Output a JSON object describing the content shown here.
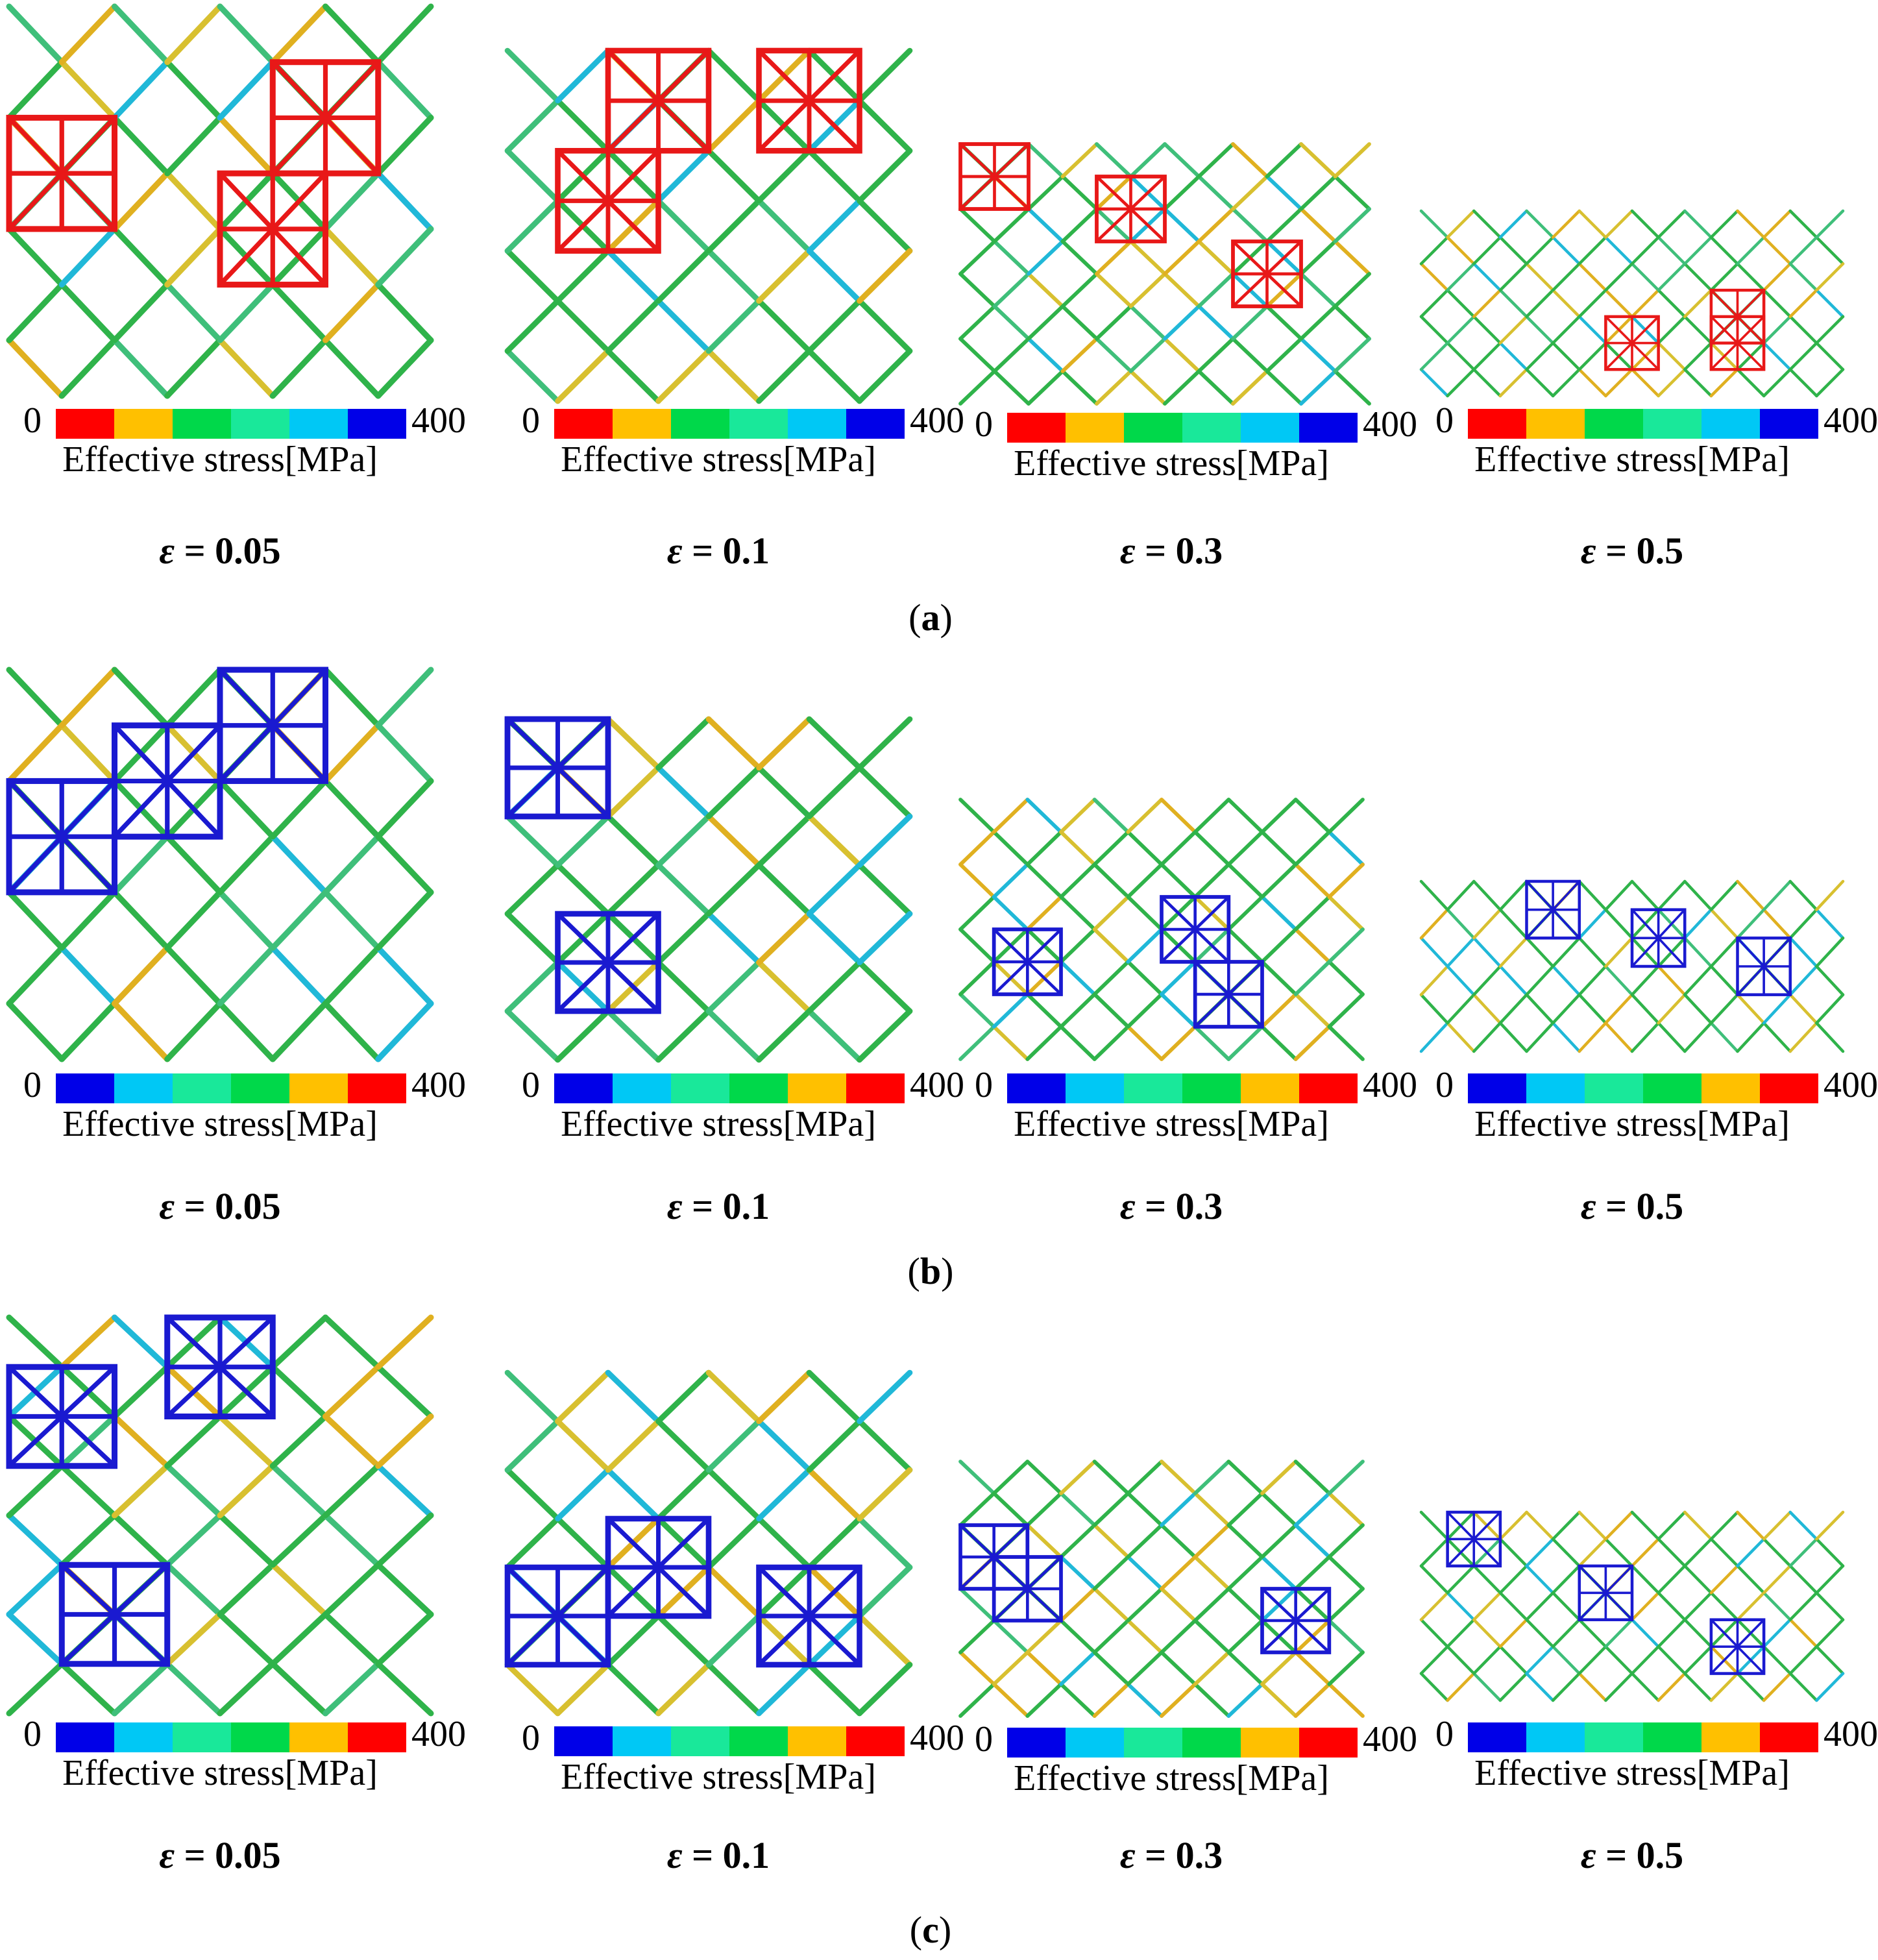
{
  "colormap": {
    "hot_to_cold": [
      "#ff0000",
      "#ffc000",
      "#00d84a",
      "#19e89a",
      "#00c8f5",
      "#0000e8"
    ],
    "cold_to_hot": [
      "#0000e8",
      "#00c8f5",
      "#19e89a",
      "#00d84a",
      "#ffc000",
      "#ff0000"
    ],
    "green_struts": "#3ab54a"
  },
  "rows": [
    {
      "caption_open": "(",
      "caption_letter": "a",
      "caption_close": ")",
      "panels": [
        {
          "strain_symbol": "ε",
          "strain_eq": " = 0.05",
          "legend_min": "0",
          "legend_max": "400",
          "legend_label": "Effective stress[MPa]",
          "colormap": "hot_to_cold"
        },
        {
          "strain_symbol": "ε",
          "strain_eq": " = 0.1",
          "legend_min": "0",
          "legend_max": "400",
          "legend_label": "Effective stress[MPa]",
          "colormap": "hot_to_cold"
        },
        {
          "strain_symbol": "ε",
          "strain_eq": " = 0.3",
          "legend_min": "0",
          "legend_max": "400",
          "legend_label": "Effective stress[MPa]",
          "colormap": "hot_to_cold"
        },
        {
          "strain_symbol": "ε",
          "strain_eq": " = 0.5",
          "legend_min": "0",
          "legend_max": "400",
          "legend_label": "Effective stress[MPa]",
          "colormap": "hot_to_cold"
        }
      ]
    },
    {
      "caption_open": "(",
      "caption_letter": "b",
      "caption_close": ")",
      "panels": [
        {
          "strain_symbol": "ε",
          "strain_eq": " = 0.05",
          "legend_min": "0",
          "legend_max": "400",
          "legend_label": "Effective stress[MPa]",
          "colormap": "cold_to_hot"
        },
        {
          "strain_symbol": "ε",
          "strain_eq": " = 0.1",
          "legend_min": "0",
          "legend_max": "400",
          "legend_label": "Effective stress[MPa]",
          "colormap": "cold_to_hot"
        },
        {
          "strain_symbol": "ε",
          "strain_eq": " = 0.3",
          "legend_min": "0",
          "legend_max": "400",
          "legend_label": "Effective stress[MPa]",
          "colormap": "cold_to_hot"
        },
        {
          "strain_symbol": "ε",
          "strain_eq": " = 0.5",
          "legend_min": "0",
          "legend_max": "400",
          "legend_label": "Effective stress[MPa]",
          "colormap": "cold_to_hot"
        }
      ]
    },
    {
      "caption_open": "(",
      "caption_letter": "c",
      "caption_close": ")",
      "panels": [
        {
          "strain_symbol": "ε",
          "strain_eq": " = 0.05",
          "legend_min": "0",
          "legend_max": "400",
          "legend_label": "Effective stress[MPa]",
          "colormap": "cold_to_hot"
        },
        {
          "strain_symbol": "ε",
          "strain_eq": " = 0.1",
          "legend_min": "0",
          "legend_max": "400",
          "legend_label": "Effective stress[MPa]",
          "colormap": "cold_to_hot"
        },
        {
          "strain_symbol": "ε",
          "strain_eq": " = 0.3",
          "legend_min": "0",
          "legend_max": "400",
          "legend_label": "Effective stress[MPa]",
          "colormap": "cold_to_hot"
        },
        {
          "strain_symbol": "ε",
          "strain_eq": " = 0.5",
          "legend_min": "0",
          "legend_max": "400",
          "legend_label": "Effective stress[MPa]",
          "colormap": "cold_to_hot"
        }
      ]
    }
  ]
}
